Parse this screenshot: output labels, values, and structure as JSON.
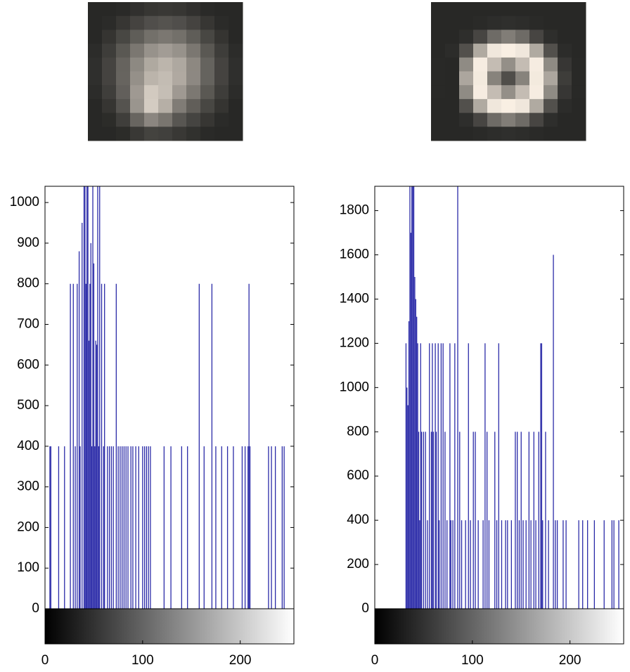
{
  "chart_data": [
    {
      "type": "stem",
      "color": "#2b2ba8",
      "xlim": [
        0,
        255
      ],
      "ylim": [
        0,
        1040
      ],
      "xticks": [
        0,
        100,
        200
      ],
      "yticks": [
        0,
        100,
        200,
        300,
        400,
        500,
        600,
        700,
        800,
        900,
        1000
      ],
      "x": [
        5,
        6,
        14,
        20,
        26,
        29,
        31,
        33,
        35,
        36,
        38,
        40,
        41,
        42,
        43,
        44,
        45,
        46,
        47,
        48,
        49,
        50,
        51,
        52,
        53,
        54,
        55,
        56,
        58,
        60,
        61,
        64,
        66,
        68,
        70,
        73,
        75,
        77,
        79,
        81,
        83,
        85,
        88,
        90,
        93,
        96,
        100,
        102,
        104,
        106,
        108,
        122,
        129,
        140,
        146,
        158,
        163,
        171,
        175,
        181,
        187,
        193,
        202,
        205,
        208,
        209,
        210,
        229,
        232,
        236,
        243,
        245
      ],
      "values": [
        400,
        400,
        400,
        400,
        800,
        800,
        400,
        800,
        880,
        400,
        950,
        1040,
        1040,
        800,
        1040,
        1040,
        660,
        800,
        900,
        400,
        1040,
        850,
        400,
        660,
        650,
        1040,
        400,
        1040,
        800,
        400,
        800,
        400,
        400,
        400,
        400,
        800,
        400,
        400,
        400,
        400,
        400,
        400,
        400,
        400,
        400,
        400,
        400,
        400,
        400,
        400,
        400,
        400,
        400,
        400,
        400,
        800,
        400,
        800,
        400,
        400,
        400,
        400,
        400,
        400,
        400,
        800,
        400,
        400,
        400,
        400,
        400,
        400
      ]
    },
    {
      "type": "stem",
      "color": "#2b2ba8",
      "xlim": [
        0,
        255
      ],
      "ylim": [
        0,
        1910
      ],
      "xticks": [
        0,
        100,
        200
      ],
      "yticks": [
        0,
        200,
        400,
        600,
        800,
        1000,
        1200,
        1400,
        1600,
        1800
      ],
      "x": [
        32,
        33,
        34,
        35,
        36,
        37,
        38,
        39,
        40,
        41,
        42,
        43,
        44,
        45,
        46,
        47,
        48,
        50,
        52,
        54,
        56,
        58,
        59,
        60,
        62,
        63,
        65,
        66,
        68,
        70,
        72,
        74,
        77,
        78,
        80,
        82,
        85,
        87,
        89,
        93,
        96,
        98,
        101,
        103,
        106,
        111,
        113,
        115,
        117,
        123,
        125,
        127,
        130,
        134,
        136,
        140,
        144,
        146,
        148,
        150,
        152,
        155,
        158,
        160,
        163,
        165,
        168,
        170,
        171,
        172,
        175,
        178,
        183,
        185,
        187,
        193,
        196,
        209,
        213,
        218,
        225,
        235,
        243,
        245,
        250
      ],
      "values": [
        1200,
        1000,
        920,
        1300,
        1910,
        1700,
        1910,
        1910,
        1910,
        1500,
        1400,
        1320,
        1200,
        800,
        400,
        1200,
        800,
        800,
        800,
        400,
        1200,
        800,
        1200,
        800,
        1200,
        800,
        1200,
        400,
        1200,
        1200,
        800,
        400,
        1200,
        400,
        400,
        1200,
        1910,
        800,
        400,
        400,
        1200,
        400,
        800,
        800,
        400,
        400,
        1200,
        800,
        400,
        800,
        400,
        1200,
        400,
        400,
        400,
        400,
        800,
        800,
        400,
        800,
        400,
        400,
        800,
        400,
        800,
        400,
        800,
        1200,
        1200,
        400,
        800,
        400,
        1600,
        400,
        400,
        400,
        400,
        400,
        400,
        400,
        400,
        400,
        400,
        400,
        400
      ]
    }
  ]
}
